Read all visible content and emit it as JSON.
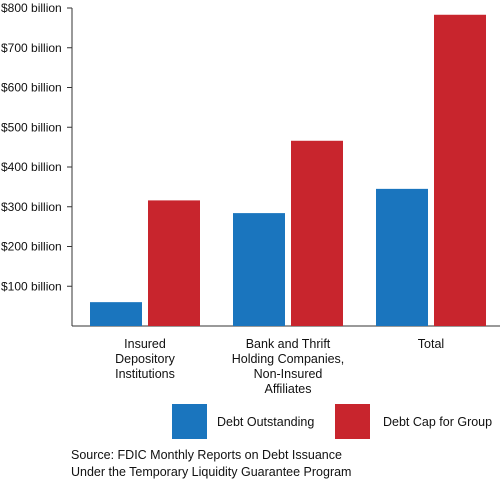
{
  "chart_data": {
    "type": "bar",
    "title": "",
    "xlabel": "",
    "ylabel": "",
    "ylim": [
      0,
      800
    ],
    "y_tick_values": [
      100,
      200,
      300,
      400,
      500,
      600,
      700,
      800
    ],
    "y_tick_labels": [
      "$100 billion",
      "$200 billion",
      "$300 billion",
      "$400 billion",
      "$500 billion",
      "$600 billion",
      "$700 billion",
      "$800 billion"
    ],
    "categories": [
      [
        "Insured",
        "Depository",
        "Institutions"
      ],
      [
        "Bank and Thrift",
        "Holding Companies,",
        "Non-Insured",
        "Affiliates"
      ],
      [
        "Total"
      ]
    ],
    "series": [
      {
        "name": "Debt Outstanding",
        "color": "#1a75be",
        "values": [
          60,
          284,
          345
        ]
      },
      {
        "name": "Debt Cap for Group",
        "color": "#c8252d",
        "values": [
          316,
          466,
          783
        ]
      }
    ],
    "grid": false,
    "legend_position": "bottom"
  },
  "source": {
    "line1": "Source:  FDIC Monthly Reports on Debt Issuance",
    "line2": "Under the Temporary Liquidity Guarantee Program"
  }
}
